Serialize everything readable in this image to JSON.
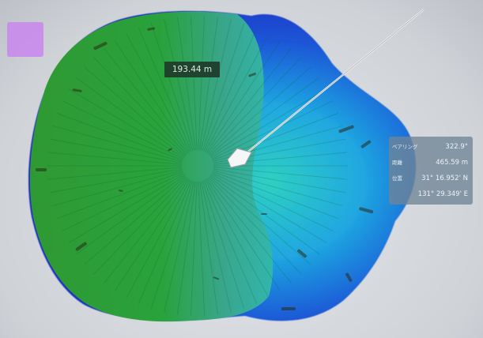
{
  "tooltip": {
    "distance": "193.44 m"
  },
  "info_panel": {
    "rows": [
      {
        "label": "ベアリング",
        "value": "322.9°"
      },
      {
        "label": "距離",
        "value": "465.59 m"
      },
      {
        "label": "位置",
        "value": "31° 16.952' N"
      },
      {
        "label": "",
        "value": "131° 29.349' E"
      }
    ]
  },
  "colors": {
    "shallow": "#2f9a2f",
    "mid": "#19b9b6",
    "deep": "#1b2fc9",
    "panel": "#7f93a6",
    "tooltip": "#1f3b2a"
  }
}
